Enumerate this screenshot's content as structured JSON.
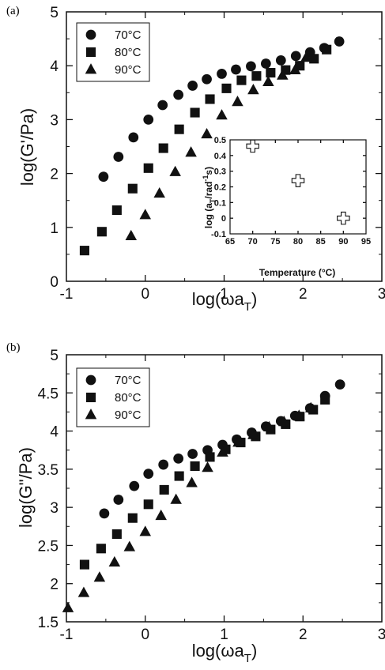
{
  "chart_data": [
    {
      "type": "scatter",
      "panel_label": "(a)",
      "xlabel": "log(ωa",
      "xlabel_sub": "T",
      "xlabel_close": ")",
      "ylabel": "log(G'/Pa)",
      "xlim": [
        -1,
        3
      ],
      "ylim": [
        0,
        5
      ],
      "xticks": [
        "-1",
        "0",
        "1",
        "2",
        "3"
      ],
      "yticks": [
        "0",
        "1",
        "2",
        "3",
        "4",
        "5"
      ],
      "xtick_values": [
        -1,
        0,
        1,
        2,
        3
      ],
      "ytick_values": [
        0,
        1,
        2,
        3,
        4,
        5
      ],
      "legend_position": "top-left",
      "series": [
        {
          "name": "70°C",
          "marker": "circle",
          "x": [
            -0.53,
            -0.34,
            -0.15,
            0.04,
            0.22,
            0.42,
            0.6,
            0.78,
            0.97,
            1.15,
            1.34,
            1.53,
            1.72,
            1.91,
            2.09,
            2.27,
            2.46
          ],
          "y": [
            1.94,
            2.31,
            2.67,
            3.0,
            3.27,
            3.46,
            3.63,
            3.75,
            3.85,
            3.93,
            3.99,
            4.04,
            4.1,
            4.18,
            4.25,
            4.33,
            4.45
          ]
        },
        {
          "name": "80°C",
          "marker": "square",
          "x": [
            -0.77,
            -0.55,
            -0.36,
            -0.16,
            0.04,
            0.23,
            0.43,
            0.63,
            0.82,
            1.03,
            1.22,
            1.41,
            1.59,
            1.78,
            1.96,
            2.14,
            2.3
          ],
          "y": [
            0.57,
            0.92,
            1.32,
            1.72,
            2.1,
            2.47,
            2.82,
            3.13,
            3.38,
            3.58,
            3.73,
            3.81,
            3.87,
            3.92,
            4.0,
            4.13,
            4.3
          ]
        },
        {
          "name": "90°C",
          "marker": "triangle",
          "x": [
            -0.18,
            0.0,
            0.18,
            0.38,
            0.58,
            0.78,
            0.97,
            1.17,
            1.37,
            1.56,
            1.74,
            1.9,
            2.04
          ],
          "y": [
            0.84,
            1.23,
            1.63,
            2.03,
            2.39,
            2.73,
            3.08,
            3.33,
            3.55,
            3.7,
            3.82,
            3.92,
            4.15
          ]
        }
      ],
      "inset": {
        "type": "scatter",
        "xlabel": "Temperature (°C)",
        "ylabel": "log (a",
        "ylabel_sub": "T",
        "ylabel_rest": "/rad",
        "ylabel_sup": "-1",
        "ylabel_end": "s)",
        "xlim": [
          65,
          95
        ],
        "ylim": [
          -0.1,
          0.5
        ],
        "xticks": [
          "65",
          "70",
          "75",
          "80",
          "85",
          "90",
          "95"
        ],
        "xtick_values": [
          65,
          70,
          75,
          80,
          85,
          90,
          95
        ],
        "yticks": [
          "-0.1",
          "0",
          "0.1",
          "0.2",
          "0.3",
          "0.4",
          "0.5"
        ],
        "ytick_values": [
          -0.1,
          0,
          0.1,
          0.2,
          0.3,
          0.4,
          0.5
        ],
        "marker": "open-cross",
        "x": [
          70,
          80,
          90
        ],
        "y": [
          0.46,
          0.24,
          0.0
        ]
      }
    },
    {
      "type": "scatter",
      "panel_label": "(b)",
      "xlabel": "log(ωa",
      "xlabel_sub": "T",
      "xlabel_close": ")",
      "ylabel": "log(G\"/Pa)",
      "xlim": [
        -1,
        3
      ],
      "ylim": [
        1.5,
        5
      ],
      "xticks": [
        "-1",
        "0",
        "1",
        "2",
        "3"
      ],
      "yticks": [
        "1.5",
        "2",
        "2.5",
        "3",
        "3.5",
        "4",
        "4.5",
        "5"
      ],
      "xtick_values": [
        -1,
        0,
        1,
        2,
        3
      ],
      "ytick_values": [
        1.5,
        2,
        2.5,
        3,
        3.5,
        4,
        4.5,
        5
      ],
      "legend_position": "top-left",
      "series": [
        {
          "name": "70°C",
          "marker": "circle",
          "x": [
            -0.52,
            -0.34,
            -0.14,
            0.04,
            0.23,
            0.42,
            0.6,
            0.79,
            0.98,
            1.16,
            1.35,
            1.53,
            1.72,
            1.9,
            2.09,
            2.28,
            2.47
          ],
          "y": [
            2.92,
            3.1,
            3.28,
            3.44,
            3.56,
            3.64,
            3.7,
            3.75,
            3.82,
            3.89,
            3.98,
            4.06,
            4.13,
            4.2,
            4.3,
            4.46,
            4.61
          ]
        },
        {
          "name": "80°C",
          "marker": "square",
          "x": [
            -0.77,
            -0.56,
            -0.36,
            -0.16,
            0.04,
            0.24,
            0.43,
            0.63,
            0.82,
            1.02,
            1.21,
            1.4,
            1.59,
            1.78,
            1.96,
            2.13,
            2.28
          ],
          "y": [
            2.25,
            2.46,
            2.65,
            2.86,
            3.04,
            3.23,
            3.41,
            3.54,
            3.66,
            3.76,
            3.85,
            3.93,
            4.02,
            4.09,
            4.19,
            4.28,
            4.41
          ]
        },
        {
          "name": "90°C",
          "marker": "triangle",
          "x": [
            -0.98,
            -0.78,
            -0.58,
            -0.39,
            -0.2,
            0.0,
            0.2,
            0.39,
            0.59,
            0.79,
            0.98,
            1.18,
            1.37,
            1.57,
            1.76,
            1.95,
            2.1
          ],
          "y": [
            1.68,
            1.88,
            2.08,
            2.28,
            2.48,
            2.68,
            2.89,
            3.1,
            3.32,
            3.52,
            3.72,
            3.85,
            3.95,
            4.05,
            4.12,
            4.2,
            4.3
          ]
        }
      ]
    }
  ]
}
